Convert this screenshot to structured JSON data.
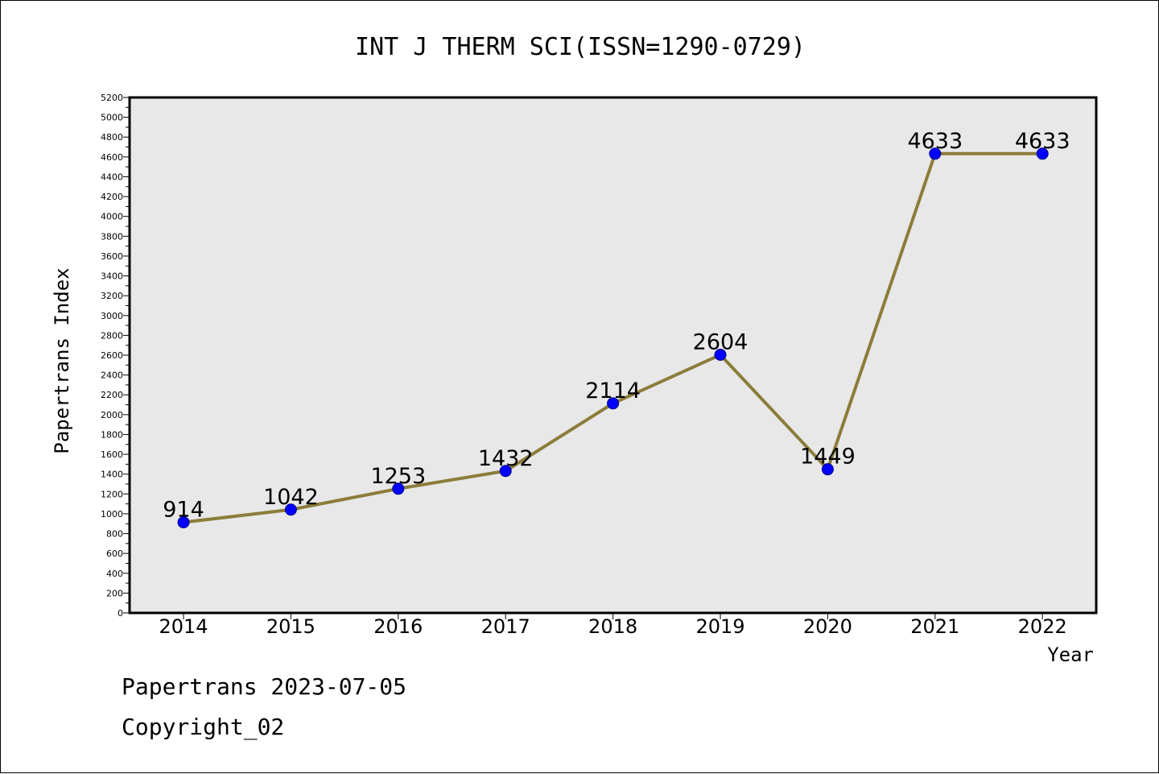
{
  "chart_data": {
    "type": "line",
    "title": "INT J THERM SCI(ISSN=1290-0729)",
    "xlabel": "Year",
    "ylabel": "Papertrans Index",
    "categories": [
      "2014",
      "2015",
      "2016",
      "2017",
      "2018",
      "2019",
      "2020",
      "2021",
      "2022"
    ],
    "series": [
      {
        "values": [
          914,
          1042,
          1253,
          1432,
          2114,
          2604,
          1449,
          4633,
          4633
        ]
      }
    ],
    "data_labels": [
      "914",
      "1042",
      "1253",
      "1432",
      "2114",
      "2604",
      "1449",
      "4633",
      "4633"
    ],
    "ylim": [
      0,
      5200
    ],
    "y_ticks": [
      0,
      200,
      400,
      600,
      800,
      1000,
      1200,
      1400,
      1600,
      1800,
      2000,
      2200,
      2400,
      2600,
      2800,
      3000,
      3200,
      3400,
      3600,
      3800,
      4000,
      4200,
      4400,
      4600,
      4800,
      5000,
      5200
    ],
    "grid": false,
    "legend": "none",
    "colors": {
      "line": "#8b7d3a",
      "marker": "#0000ff",
      "plot_background": "#e8e8e8",
      "axis": "#000000"
    }
  },
  "footer": {
    "line1": "Papertrans 2023-07-05",
    "line2": "Copyright_02"
  }
}
